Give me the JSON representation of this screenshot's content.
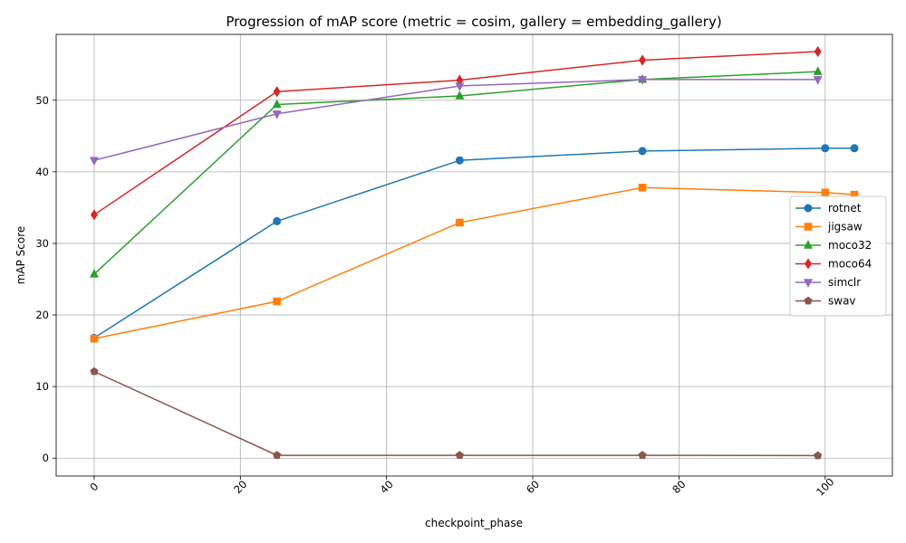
{
  "chart_data": {
    "type": "line",
    "title": "Progression of mAP score (metric = cosim, gallery = embedding_gallery)",
    "xlabel": "checkpoint_phase",
    "ylabel": "mAP Score",
    "xlim": [
      -5.2,
      109.2
    ],
    "ylim": [
      -2.5,
      59.2
    ],
    "xticks": [
      0,
      20,
      40,
      60,
      80,
      100
    ],
    "yticks": [
      0,
      10,
      20,
      30,
      40,
      50
    ],
    "xtick_rotation": 45,
    "grid": true,
    "legend_position": "center-right",
    "series": [
      {
        "name": "rotnet",
        "color": "#1f77b4",
        "marker": "circle",
        "x": [
          0,
          25,
          50,
          75,
          100,
          104
        ],
        "y": [
          16.8,
          33.1,
          41.6,
          42.9,
          43.3,
          43.3
        ]
      },
      {
        "name": "jigsaw",
        "color": "#ff7f0e",
        "marker": "square",
        "x": [
          0,
          25,
          50,
          75,
          100,
          104
        ],
        "y": [
          16.7,
          21.9,
          32.9,
          37.8,
          37.1,
          36.8
        ]
      },
      {
        "name": "moco32",
        "color": "#2ca02c",
        "marker": "triangle-up",
        "x": [
          0,
          25,
          50,
          75,
          99
        ],
        "y": [
          25.7,
          49.4,
          50.6,
          52.9,
          54.0
        ]
      },
      {
        "name": "moco64",
        "color": "#d62728",
        "marker": "diamond",
        "x": [
          0,
          25,
          50,
          75,
          99
        ],
        "y": [
          34.0,
          51.2,
          52.8,
          55.6,
          56.8
        ]
      },
      {
        "name": "simclr",
        "color": "#9467bd",
        "marker": "triangle-down",
        "x": [
          0,
          25,
          50,
          75,
          99
        ],
        "y": [
          41.6,
          48.1,
          52.0,
          52.9,
          52.9
        ]
      },
      {
        "name": "swav",
        "color": "#8c564b",
        "marker": "pentagon",
        "x": [
          0,
          25,
          50,
          75,
          99
        ],
        "y": [
          12.1,
          0.4,
          0.4,
          0.4,
          0.35
        ]
      }
    ]
  }
}
